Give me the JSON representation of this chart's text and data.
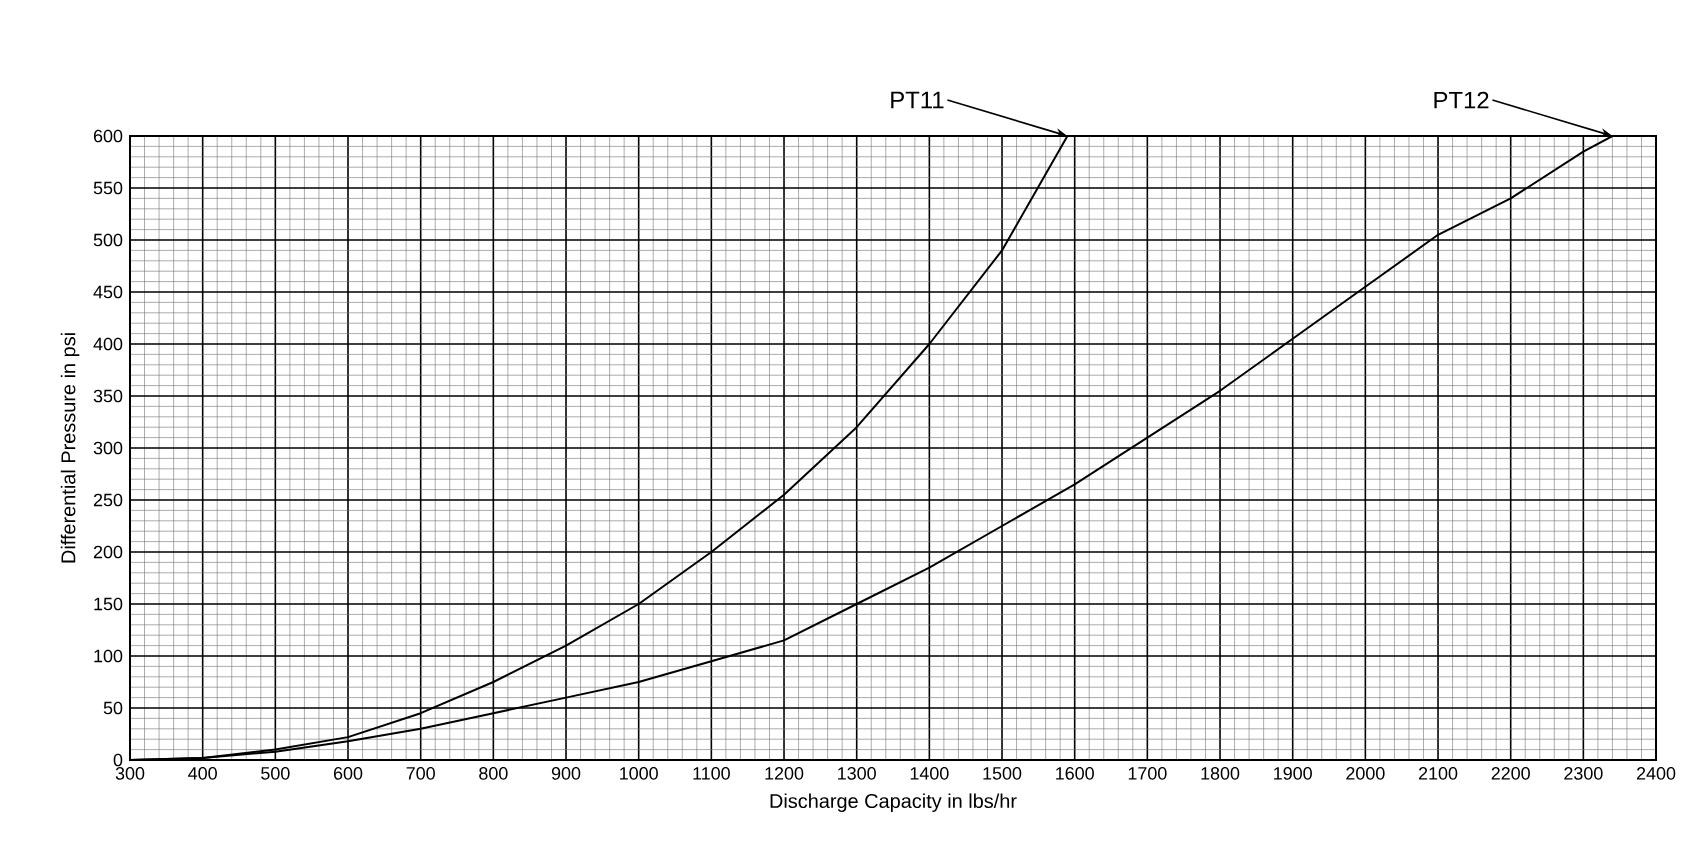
{
  "chart_data": {
    "type": "line",
    "xlabel": "Discharge Capacity in lbs/hr",
    "ylabel": "Differential Pressure in psi",
    "xlim": [
      300,
      2400
    ],
    "ylim": [
      0,
      600
    ],
    "xticks": [
      300,
      400,
      500,
      600,
      700,
      800,
      900,
      1000,
      1100,
      1200,
      1300,
      1400,
      1500,
      1600,
      1700,
      1800,
      1900,
      2000,
      2100,
      2200,
      2300,
      2400
    ],
    "yticks": [
      0,
      50,
      100,
      150,
      200,
      250,
      300,
      350,
      400,
      450,
      500,
      550,
      600
    ],
    "grid": true,
    "legend": false,
    "marker": "none",
    "line_style": "solid",
    "series": [
      {
        "name": "PT11",
        "color": "#000000",
        "x": [
          300,
          400,
          500,
          600,
          700,
          800,
          900,
          1000,
          1100,
          1200,
          1300,
          1400,
          1500,
          1590
        ],
        "values": [
          0,
          2,
          10,
          22,
          45,
          75,
          110,
          150,
          200,
          255,
          320,
          400,
          490,
          600
        ]
      },
      {
        "name": "PT12",
        "color": "#000000",
        "x": [
          300,
          400,
          500,
          600,
          700,
          800,
          900,
          1000,
          1100,
          1200,
          1300,
          1400,
          1500,
          1600,
          1700,
          1800,
          1900,
          2000,
          2100,
          2200,
          2300,
          2340
        ],
        "values": [
          0,
          2,
          8,
          18,
          30,
          45,
          60,
          75,
          95,
          115,
          150,
          185,
          225,
          265,
          310,
          355,
          405,
          455,
          505,
          540,
          585,
          600
        ]
      }
    ]
  }
}
